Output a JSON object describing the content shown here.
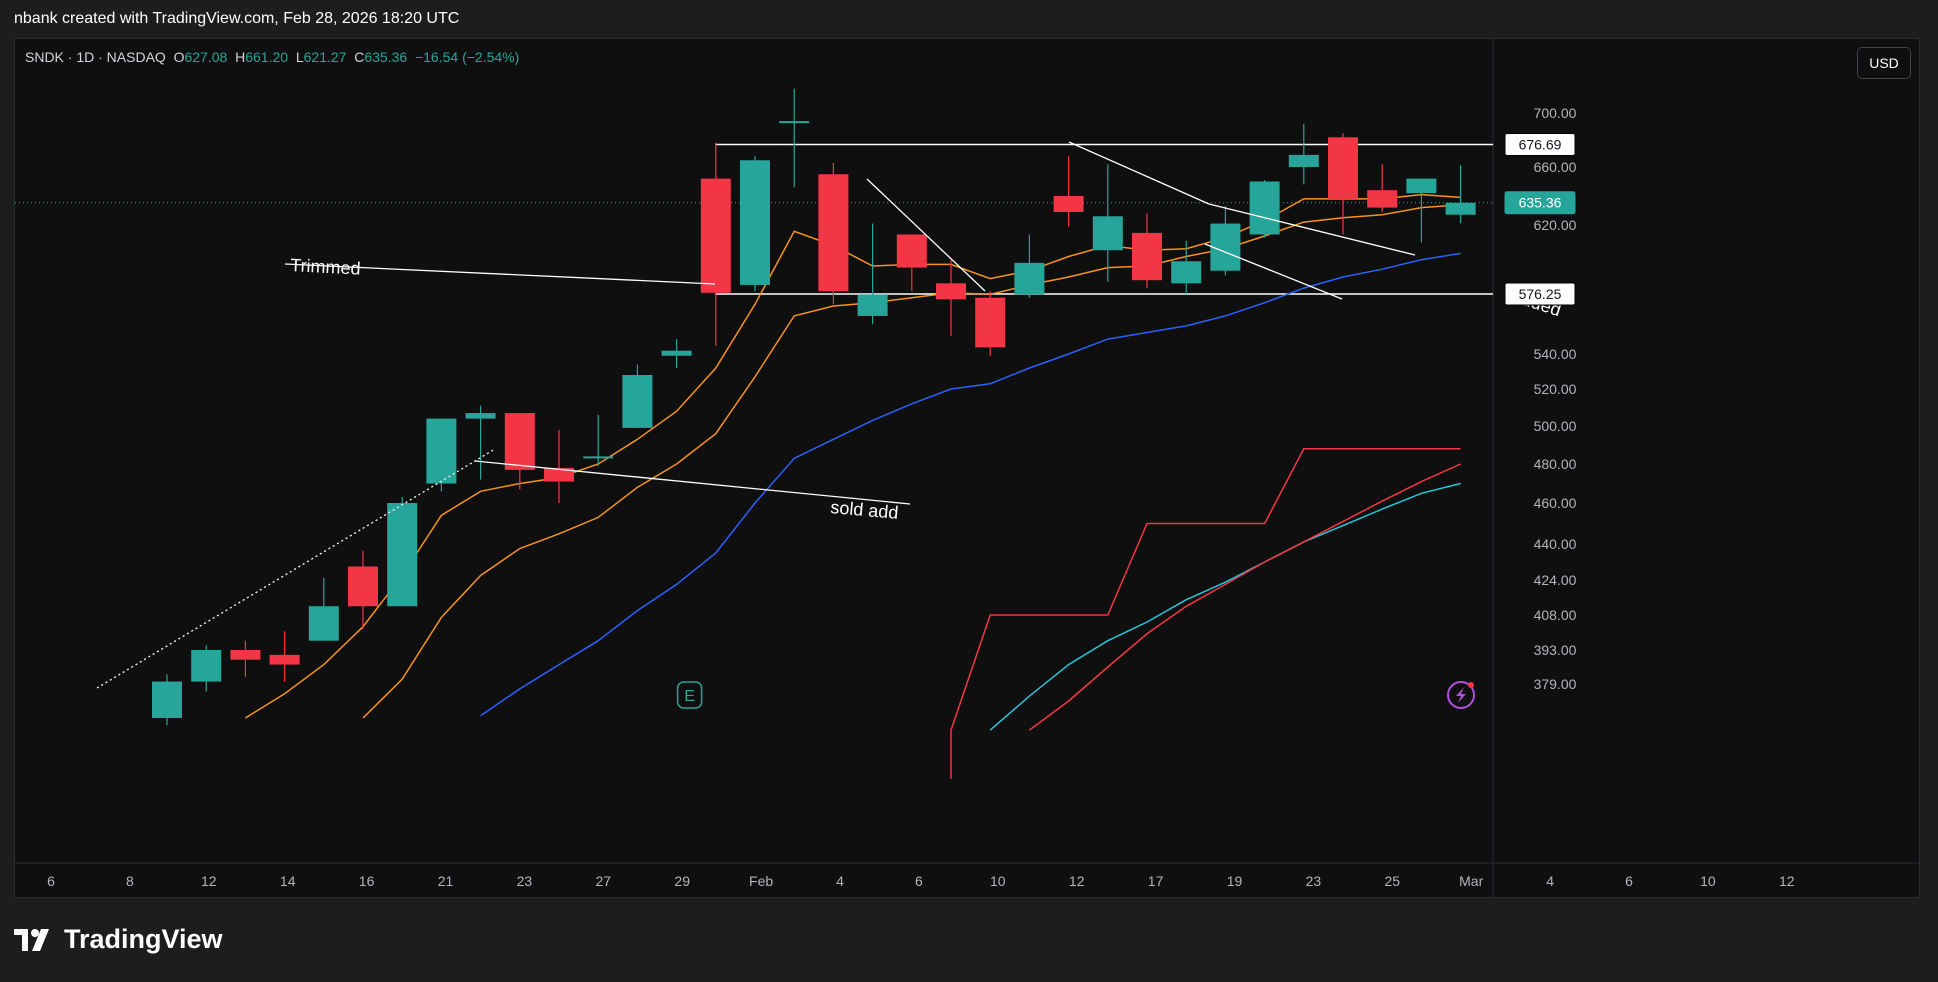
{
  "credit": "nbank created with TradingView.com, Feb 28, 2026 18:20 UTC",
  "currency_button": "USD",
  "brand": "TradingView",
  "colors": {
    "up": "#26a69a",
    "down": "#f23645",
    "background": "#0f0f0f",
    "ema_fast": "#f7931a",
    "sma": "#2962ff"
  },
  "legend": {
    "symbol": "SNDK · 1D · NASDAQ",
    "o_label": "O",
    "o": "627.08",
    "h_label": "H",
    "h": "661.20",
    "l_label": "L",
    "l": "621.27",
    "c_label": "C",
    "c": "635.36",
    "change": "−16.54 (−2.54%)"
  },
  "chart_data": {
    "type": "candlestick",
    "symbol": "SNDK",
    "interval": "1D",
    "exchange": "NASDAQ",
    "price_axis": {
      "labels": [
        "700.00",
        "660.00",
        "620.00",
        "540.00",
        "520.00",
        "500.00",
        "480.00",
        "460.00",
        "440.00",
        "424.00",
        "408.00",
        "393.00",
        "379.00"
      ],
      "highlighted": [
        {
          "label": "676.69",
          "style": "white"
        },
        {
          "label": "635.36",
          "style": "green"
        },
        {
          "label": "576.25",
          "style": "white"
        }
      ]
    },
    "time_axis": {
      "labels": [
        "6",
        "8",
        "12",
        "14",
        "16",
        "21",
        "23",
        "27",
        "29",
        "Feb",
        "4",
        "6",
        "10",
        "12",
        "17",
        "19",
        "23",
        "25",
        "Mar",
        "4",
        "6",
        "10",
        "12"
      ]
    },
    "candles": [
      {
        "date": "Jan 9",
        "o": 365,
        "h": 383,
        "l": 362,
        "c": 380
      },
      {
        "date": "Jan 12",
        "o": 380,
        "h": 395,
        "l": 376,
        "c": 393
      },
      {
        "date": "Jan 13",
        "o": 393,
        "h": 397,
        "l": 382,
        "c": 389
      },
      {
        "date": "Jan 14",
        "o": 391,
        "h": 401,
        "l": 380,
        "c": 387
      },
      {
        "date": "Jan 15",
        "o": 397,
        "h": 425,
        "l": 397,
        "c": 412
      },
      {
        "date": "Jan 16",
        "o": 430,
        "h": 437,
        "l": 402,
        "c": 412
      },
      {
        "date": "Jan 20",
        "o": 412,
        "h": 463,
        "l": 412,
        "c": 460
      },
      {
        "date": "Jan 21",
        "o": 470,
        "h": 504,
        "l": 466,
        "c": 504
      },
      {
        "date": "Jan 22",
        "o": 504,
        "h": 511,
        "l": 472,
        "c": 507
      },
      {
        "date": "Jan 23",
        "o": 507,
        "h": 507,
        "l": 467,
        "c": 477
      },
      {
        "date": "Jan 26",
        "o": 478,
        "h": 498,
        "l": 460,
        "c": 471
      },
      {
        "date": "Jan 27",
        "o": 484,
        "h": 506,
        "l": 479,
        "c": 484
      },
      {
        "date": "Jan 28",
        "o": 499,
        "h": 534,
        "l": 499,
        "c": 528
      },
      {
        "date": "Jan 29",
        "o": 539,
        "h": 549,
        "l": 532,
        "c": 542
      },
      {
        "date": "Jan 30",
        "o": 652,
        "h": 678,
        "l": 545,
        "c": 577
      },
      {
        "date": "Feb 2",
        "o": 582,
        "h": 668,
        "l": 578,
        "c": 665
      },
      {
        "date": "Feb 3",
        "o": 694,
        "h": 718,
        "l": 646,
        "c": 694
      },
      {
        "date": "Feb 4",
        "o": 655,
        "h": 663,
        "l": 570,
        "c": 578
      },
      {
        "date": "Feb 5",
        "o": 563,
        "h": 621,
        "l": 558,
        "c": 576
      },
      {
        "date": "Feb 6",
        "o": 614,
        "h": 614,
        "l": 578,
        "c": 593
      },
      {
        "date": "Feb 9",
        "o": 583,
        "h": 598,
        "l": 551,
        "c": 573
      },
      {
        "date": "Feb 10",
        "o": 574,
        "h": 578,
        "l": 539,
        "c": 544
      },
      {
        "date": "Feb 11",
        "o": 576,
        "h": 614,
        "l": 574,
        "c": 596
      },
      {
        "date": "Feb 12",
        "o": 640,
        "h": 668,
        "l": 619,
        "c": 629
      },
      {
        "date": "Feb 13",
        "o": 604,
        "h": 662,
        "l": 584,
        "c": 626
      },
      {
        "date": "Feb 17",
        "o": 615,
        "h": 628,
        "l": 580,
        "c": 585
      },
      {
        "date": "Feb 18",
        "o": 583,
        "h": 610,
        "l": 576,
        "c": 597
      },
      {
        "date": "Feb 19",
        "o": 591,
        "h": 633,
        "l": 588,
        "c": 621
      },
      {
        "date": "Feb 20",
        "o": 614,
        "h": 651,
        "l": 612,
        "c": 650
      },
      {
        "date": "Feb 23",
        "o": 660,
        "h": 692,
        "l": 648,
        "c": 669
      },
      {
        "date": "Feb 24",
        "o": 682,
        "h": 685,
        "l": 614,
        "c": 638
      },
      {
        "date": "Feb 25",
        "o": 644,
        "h": 662,
        "l": 629,
        "c": 632
      },
      {
        "date": "Feb 26",
        "o": 642,
        "h": 650,
        "l": 609,
        "c": 652
      },
      {
        "date": "Feb 27",
        "o": 627.08,
        "h": 661.2,
        "l": 621.27,
        "c": 635.36
      }
    ],
    "moving_averages": [
      {
        "color": "#f7931a",
        "values": [
          null,
          null,
          365,
          375,
          387,
          403,
          426,
          454,
          466,
          470,
          473,
          480,
          493,
          508,
          532,
          570,
          616,
          607,
          594,
          595,
          595,
          586,
          591,
          600,
          607,
          604,
          605,
          612,
          623,
          638,
          638,
          638,
          641,
          639
        ]
      },
      {
        "color": "#f7931a",
        "values": [
          null,
          null,
          null,
          null,
          null,
          365,
          381,
          407,
          426,
          438,
          445,
          453,
          468,
          480,
          496,
          527,
          563,
          569,
          571,
          574,
          577,
          576,
          582,
          587,
          593,
          594,
          600,
          605,
          613,
          622,
          625,
          627,
          632,
          634
        ]
      },
      {
        "color": "#2962ff",
        "values": [
          null,
          null,
          null,
          null,
          null,
          null,
          null,
          null,
          366,
          377,
          387,
          397,
          410,
          422,
          436,
          460,
          483,
          493,
          503,
          512,
          520,
          523,
          532,
          540,
          549,
          553,
          557,
          563,
          571,
          580,
          587,
          592,
          598,
          602
        ]
      }
    ],
    "lower_lines": [
      {
        "color": "#f23645",
        "values": [
          null,
          null,
          null,
          null,
          null,
          null,
          null,
          null,
          null,
          null,
          null,
          null,
          null,
          null,
          null,
          null,
          null,
          null,
          null,
          null,
          360,
          408,
          408,
          408,
          408,
          450,
          450,
          450,
          450,
          488,
          488,
          488,
          488,
          488
        ]
      },
      {
        "color": "#26c6da",
        "values": [
          null,
          null,
          null,
          null,
          null,
          null,
          null,
          null,
          null,
          null,
          null,
          null,
          null,
          null,
          null,
          null,
          null,
          null,
          null,
          null,
          null,
          360,
          374,
          387,
          397,
          405,
          415,
          423,
          432,
          441,
          449,
          457,
          465,
          470
        ]
      },
      {
        "color": "#f23645",
        "values": [
          null,
          null,
          null,
          null,
          null,
          null,
          null,
          null,
          null,
          null,
          null,
          null,
          null,
          null,
          null,
          null,
          null,
          null,
          null,
          null,
          null,
          null,
          360,
          372,
          386,
          400,
          412,
          422,
          432,
          441,
          451,
          461,
          471,
          480
        ]
      }
    ],
    "horizontal_levels": [
      676.69,
      576.25
    ],
    "annotations": [
      {
        "text": "Trimmed"
      },
      {
        "text": "sold add"
      },
      {
        "text": "added"
      }
    ],
    "markers": [
      "E"
    ]
  }
}
